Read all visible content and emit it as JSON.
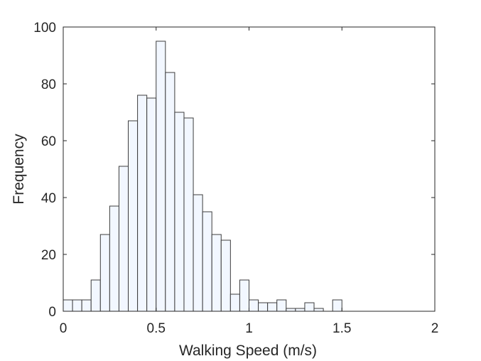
{
  "chart_data": {
    "type": "bar",
    "title": "",
    "xlabel": "Walking Speed (m/s)",
    "ylabel": "Frequency",
    "xlim": [
      0,
      2
    ],
    "ylim": [
      0,
      100
    ],
    "bin_width": 0.05,
    "bin_edges_start": 0,
    "x_ticks": [
      0,
      0.5,
      1,
      1.5,
      2
    ],
    "x_tick_labels": [
      "0",
      "0.5",
      "1",
      "1.5",
      "2"
    ],
    "y_ticks": [
      0,
      20,
      40,
      60,
      80,
      100
    ],
    "y_tick_labels": [
      "0",
      "20",
      "40",
      "60",
      "80",
      "100"
    ],
    "values": [
      4,
      4,
      4,
      11,
      27,
      37,
      51,
      67,
      76,
      75,
      95,
      84,
      70,
      68,
      41,
      35,
      27,
      25,
      6,
      11,
      4,
      3,
      3,
      4,
      1,
      1,
      3,
      1,
      0,
      4
    ],
    "grid": false,
    "legend": "none",
    "colors": {
      "bar_fill": "#f2f7ff",
      "bar_edge": "#3d3d3d",
      "axis": "#262626"
    }
  }
}
